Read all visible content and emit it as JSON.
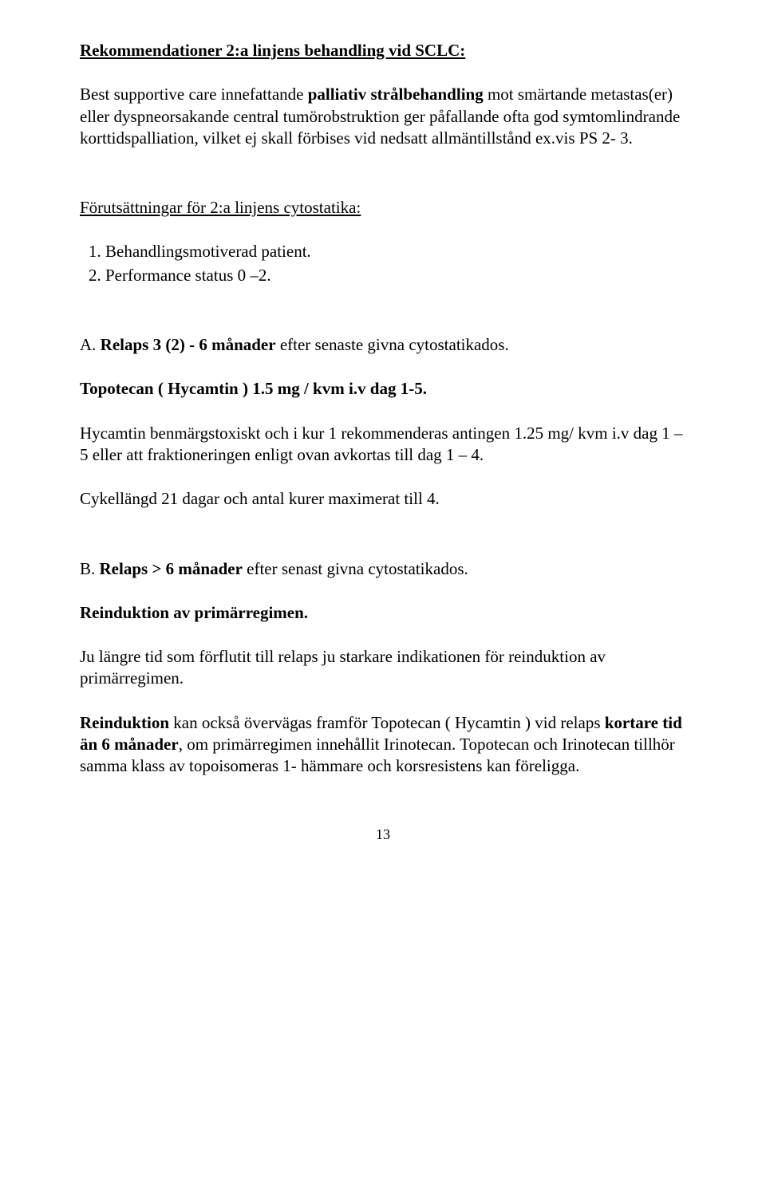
{
  "title": "Rekommendationer 2:a linjens behandling vid SCLC:",
  "intro_html": "Best supportive care innefattande <b>palliativ strålbehandling</b> mot smärtande metastas(er) eller dyspneorsakande central tumörobstruktion ger påfallande ofta god symtomlindrande korttidspalliation, vilket ej skall förbises vid nedsatt allmäntillstånd ex.vis PS 2- 3.",
  "prereq_heading": "Förutsättningar för 2:a linjens cytostatika:",
  "prereq_items": [
    "Behandlingsmotiverad patient.",
    "Performance status 0 –2."
  ],
  "sectionA_heading_html": "A. <b>Relaps 3 (2) - 6 månader</b> efter senaste givna cytostatikados.",
  "sectionA_topotecan_html": "<b>Topotecan ( Hycamtin ) 1.5 mg / kvm i.v dag 1-5.</b>",
  "sectionA_hycamtin": "Hycamtin benmärgstoxiskt och i kur 1 rekommenderas antingen 1.25 mg/ kvm i.v dag 1 – 5 eller att fraktioneringen enligt ovan avkortas till dag 1 – 4.",
  "sectionA_cycle": "Cykellängd 21 dagar och antal kurer maximerat till 4.",
  "sectionB_heading_html": "B. <b>Relaps > 6 månader</b> efter senast givna cytostatikados.",
  "sectionB_reinduction_html": "<b>Reinduktion av primärregimen.</b>",
  "sectionB_para1": "Ju längre tid som förflutit till relaps ju starkare indikationen för reinduktion av primärregimen.",
  "sectionB_para2_html": "<b>Reinduktion</b> kan också övervägas framför Topotecan ( Hycamtin ) vid relaps <b>kortare tid än 6 månader</b>, om primärregimen innehållit Irinotecan. Topotecan och Irinotecan tillhör samma klass av topoisomeras 1- hämmare och korsresistens kan föreligga.",
  "page_number": "13"
}
